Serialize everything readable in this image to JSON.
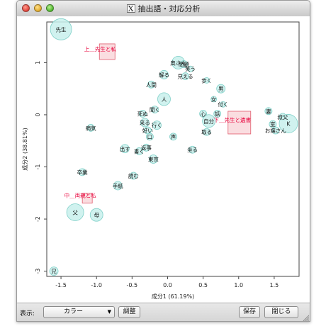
{
  "window": {
    "title": "抽出語・対応分析",
    "app_icon": "x-icon"
  },
  "chart_data": {
    "type": "scatter",
    "xlabel": "成分1 (61.19%)",
    "ylabel": "成分2 (38.81%)",
    "xlim": [
      -1.7,
      1.85
    ],
    "ylim": [
      -3.1,
      1.78
    ],
    "xticks": [
      -1.5,
      -1.0,
      -0.5,
      0.0,
      0.5,
      1.0,
      1.5
    ],
    "xtick_labels": [
      "-1.5",
      "-1.0",
      "-0.5",
      "0.0",
      "0.5",
      "1.0",
      "1.5"
    ],
    "yticks": [
      -3,
      -2,
      -1,
      0,
      1
    ],
    "ytick_labels": [
      "-3",
      "-2",
      "-1",
      "0",
      "1"
    ],
    "point_fill": "#c8f0ec",
    "point_stroke": "#7fd0c8",
    "variable_color": "#e8003a",
    "words": [
      {
        "label": "先生",
        "x": -1.5,
        "y": 1.64,
        "r": 15
      },
      {
        "label": "奥さん",
        "x": 0.15,
        "y": 1.0,
        "r": 9
      },
      {
        "label": "問題",
        "x": 0.23,
        "y": 0.97,
        "r": 5
      },
      {
        "label": "笑う",
        "x": 0.32,
        "y": 0.88,
        "r": 4
      },
      {
        "label": "解る",
        "x": -0.05,
        "y": 0.77,
        "r": 6
      },
      {
        "label": "見える",
        "x": 0.25,
        "y": 0.74,
        "r": 5
      },
      {
        "label": "歩く",
        "x": 0.55,
        "y": 0.66,
        "r": 4
      },
      {
        "label": "男",
        "x": 0.75,
        "y": 0.5,
        "r": 6
      },
      {
        "label": "人間",
        "x": -0.23,
        "y": 0.58,
        "r": 5
      },
      {
        "label": "人",
        "x": -0.05,
        "y": 0.3,
        "r": 9
      },
      {
        "label": "女",
        "x": 0.65,
        "y": 0.3,
        "r": 4
      },
      {
        "label": "付く",
        "x": 0.78,
        "y": 0.2,
        "r": 4
      },
      {
        "label": "聞く",
        "x": -0.18,
        "y": 0.1,
        "r": 5
      },
      {
        "label": "死ぬ",
        "x": -0.35,
        "y": 0.02,
        "r": 5
      },
      {
        "label": "心",
        "x": 0.5,
        "y": 0.02,
        "r": 5
      },
      {
        "label": "話",
        "x": 0.7,
        "y": 0.02,
        "r": 5
      },
      {
        "label": "自分",
        "x": 0.58,
        "y": -0.12,
        "r": 9
      },
      {
        "label": "来る",
        "x": -0.32,
        "y": -0.15,
        "r": 6
      },
      {
        "label": "病気",
        "x": -1.08,
        "y": -0.25,
        "r": 5
      },
      {
        "label": "行く",
        "x": -0.15,
        "y": -0.2,
        "r": 6
      },
      {
        "label": "好い",
        "x": -0.28,
        "y": -0.3,
        "r": 5
      },
      {
        "label": "取る",
        "x": 0.55,
        "y": -0.33,
        "r": 5
      },
      {
        "label": "妻",
        "x": 1.42,
        "y": 0.07,
        "r": 5
      },
      {
        "label": "叔父",
        "x": 1.62,
        "y": -0.04,
        "r": 5
      },
      {
        "label": "K",
        "x": 1.7,
        "y": -0.17,
        "r": 13
      },
      {
        "label": "室",
        "x": 1.48,
        "y": -0.18,
        "r": 5
      },
      {
        "label": "お嬢さん",
        "x": 1.52,
        "y": -0.3,
        "r": 5
      },
      {
        "label": "口",
        "x": -0.25,
        "y": -0.42,
        "r": 5
      },
      {
        "label": "声",
        "x": 0.08,
        "y": -0.42,
        "r": 5
      },
      {
        "label": "出す",
        "x": -0.6,
        "y": -0.65,
        "r": 6
      },
      {
        "label": "返事",
        "x": -0.3,
        "y": -0.63,
        "r": 5
      },
      {
        "label": "書く",
        "x": -0.4,
        "y": -0.7,
        "r": 5
      },
      {
        "label": "坐る",
        "x": 0.35,
        "y": -0.67,
        "r": 5
      },
      {
        "label": "東京",
        "x": -0.2,
        "y": -0.85,
        "r": 6
      },
      {
        "label": "卒業",
        "x": -1.2,
        "y": -1.1,
        "r": 5
      },
      {
        "label": "読む",
        "x": -0.48,
        "y": -1.17,
        "r": 5
      },
      {
        "label": "手紙",
        "x": -0.7,
        "y": -1.36,
        "r": 6
      },
      {
        "label": "父",
        "x": -1.3,
        "y": -1.87,
        "r": 12
      },
      {
        "label": "母",
        "x": -1.0,
        "y": -1.92,
        "r": 9
      },
      {
        "label": "兄",
        "x": -1.6,
        "y": -3.0,
        "r": 6
      }
    ],
    "variables": [
      {
        "label": "上＿先生と私",
        "x": -0.85,
        "y": 1.21,
        "box_r": 11
      },
      {
        "label": "下＿先生と遺書",
        "x": 1.01,
        "y": -0.15,
        "box_r": 16
      },
      {
        "label": "中＿両親と私",
        "x": -1.13,
        "y": -1.6,
        "box_r": 7
      }
    ]
  },
  "toolbar": {
    "display_label": "表示:",
    "display_value": "カラー",
    "adjust_button": "調整",
    "save_button": "保存",
    "close_button": "閉じる"
  }
}
